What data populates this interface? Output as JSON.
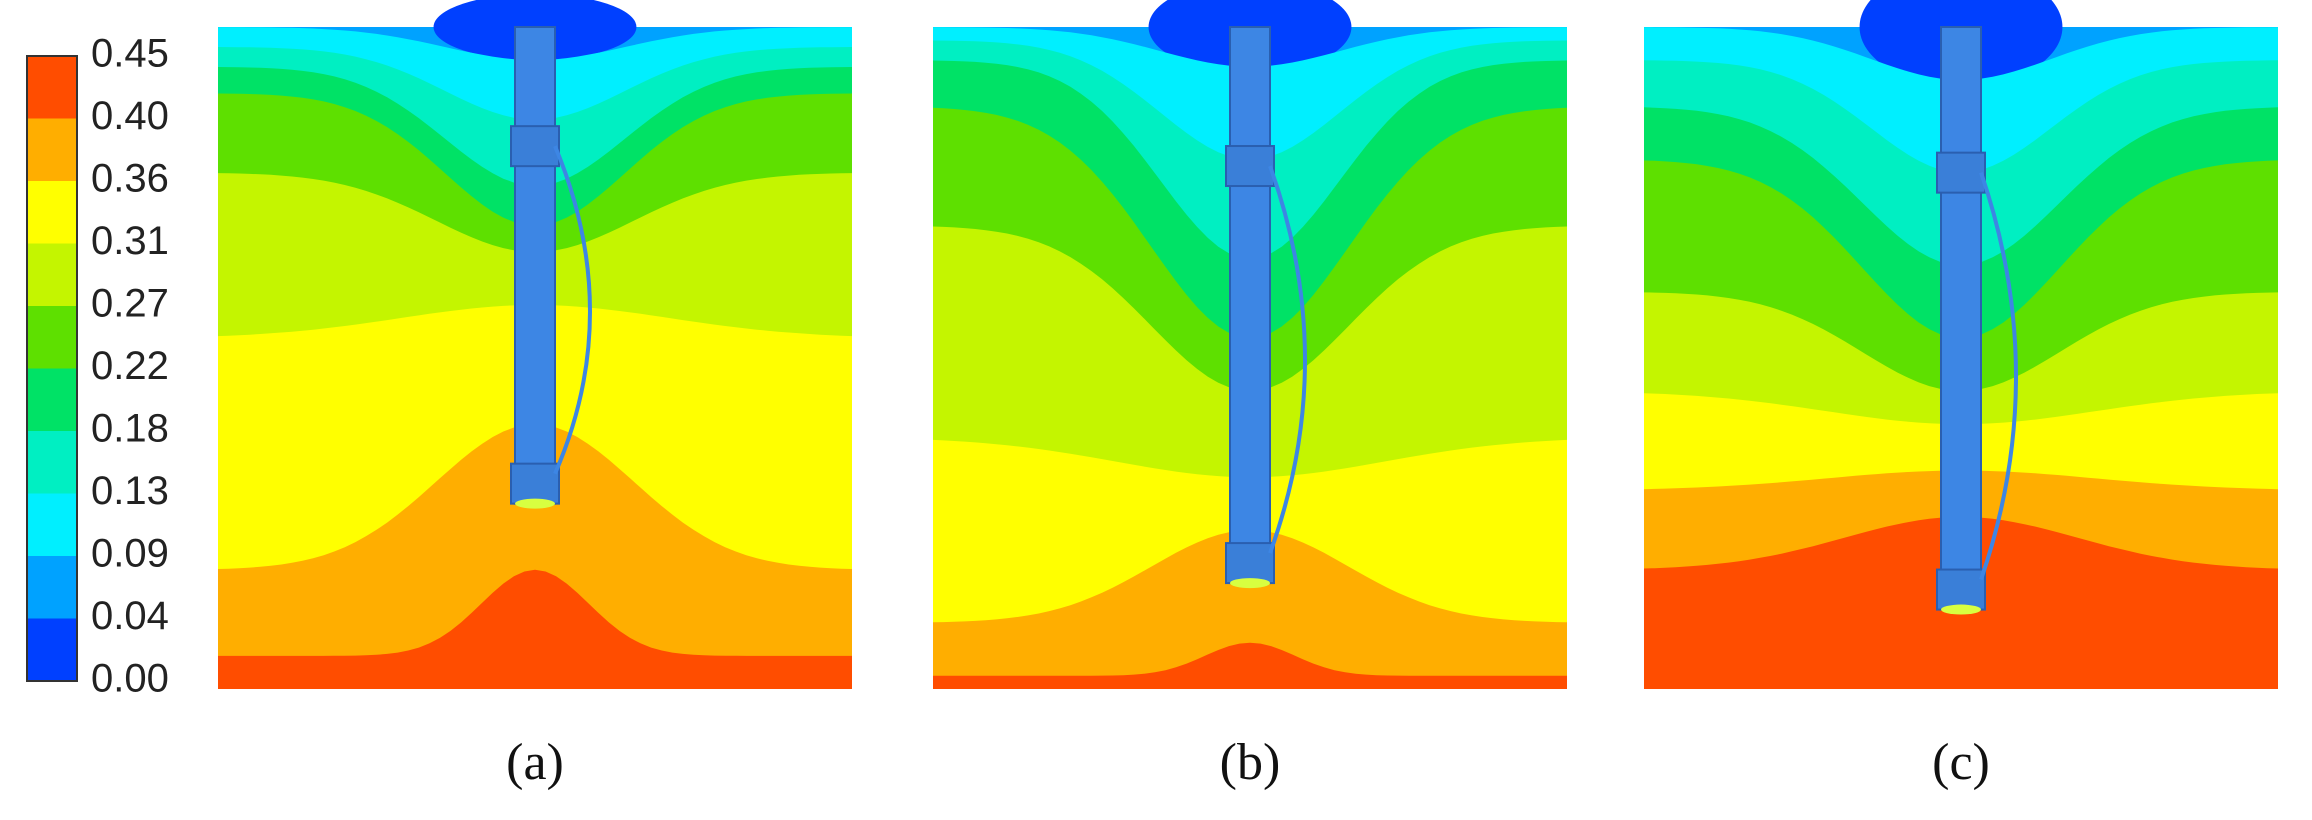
{
  "colorbar": {
    "ticks": [
      "0.45",
      "0.40",
      "0.36",
      "0.31",
      "0.27",
      "0.22",
      "0.18",
      "0.13",
      "0.09",
      "0.04",
      "0.00"
    ]
  },
  "panels": [
    {
      "label": "(a)"
    },
    {
      "label": "(b)"
    },
    {
      "label": "(c)"
    }
  ]
}
